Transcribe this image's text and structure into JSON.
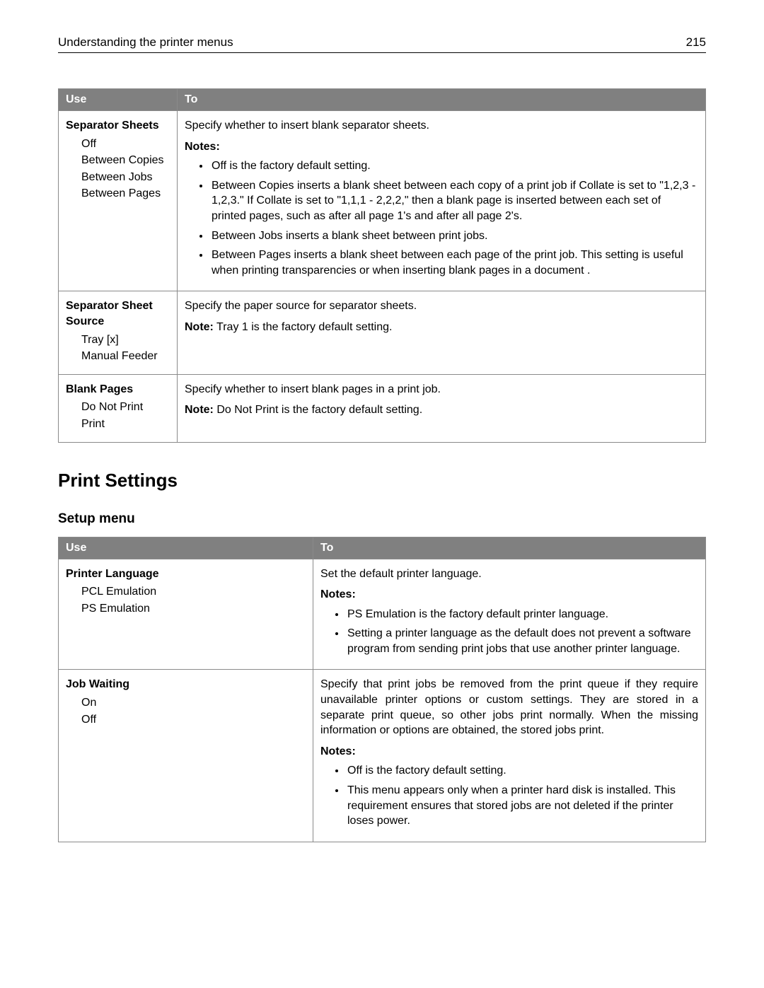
{
  "header": {
    "title": "Understanding the printer menus",
    "page": "215"
  },
  "table1": {
    "columns": [
      "Use",
      "To"
    ],
    "rows": [
      {
        "title": "Separator Sheets",
        "options": [
          "Off",
          "Between Copies",
          "Between Jobs",
          "Between Pages"
        ],
        "description": "Specify whether to insert blank separator sheets.",
        "notes_label": "Notes:",
        "notes": [
          "Off is the factory default setting.",
          "Between Copies inserts a blank sheet between each copy of a print job if Collate is set to \"1,2,3 - 1,2,3.\" If Collate is set to \"1,1,1 - 2,2,2,\" then a blank page is inserted between each set of printed pages, such as after all page 1's and after all page 2's.",
          "Between Jobs inserts a blank sheet between print jobs.",
          "Between Pages inserts a blank sheet between each page of the print job. This setting is useful when printing transparencies or when inserting blank pages in a document ."
        ]
      },
      {
        "title": "Separator Sheet Source",
        "options": [
          "Tray [x]",
          "Manual Feeder"
        ],
        "description": "Specify the paper source for separator sheets.",
        "single_note_prefix": "Note:",
        "single_note_body": " Tray 1 is the factory default setting."
      },
      {
        "title": "Blank Pages",
        "options": [
          "Do Not Print",
          "Print"
        ],
        "description": "Specify whether to insert blank pages in a print job.",
        "single_note_prefix": "Note:",
        "single_note_body": " Do Not Print is the factory default setting."
      }
    ]
  },
  "section_heading": "Print Settings",
  "subsection_heading": "Setup menu",
  "table2": {
    "columns": [
      "Use",
      "To"
    ],
    "rows": [
      {
        "title": "Printer Language",
        "options": [
          "PCL Emulation",
          "PS Emulation"
        ],
        "description": "Set the default printer language.",
        "notes_label": "Notes:",
        "notes": [
          "PS Emulation is the factory default printer language.",
          "Setting a printer language as the default does not prevent a software program from sending print jobs that use another printer language."
        ]
      },
      {
        "title": "Job Waiting",
        "options": [
          "On",
          "Off"
        ],
        "description": "Specify that print jobs be removed from the print queue if they require unavailable printer options or custom settings. They are stored in a separate print queue, so other jobs print normally. When the missing information or options are obtained, the stored jobs print.",
        "notes_label": "Notes:",
        "notes": [
          "Off is the factory default setting.",
          "This menu appears only when a printer hard disk is installed. This requirement ensures that stored jobs are not deleted if the printer loses power."
        ]
      }
    ]
  }
}
